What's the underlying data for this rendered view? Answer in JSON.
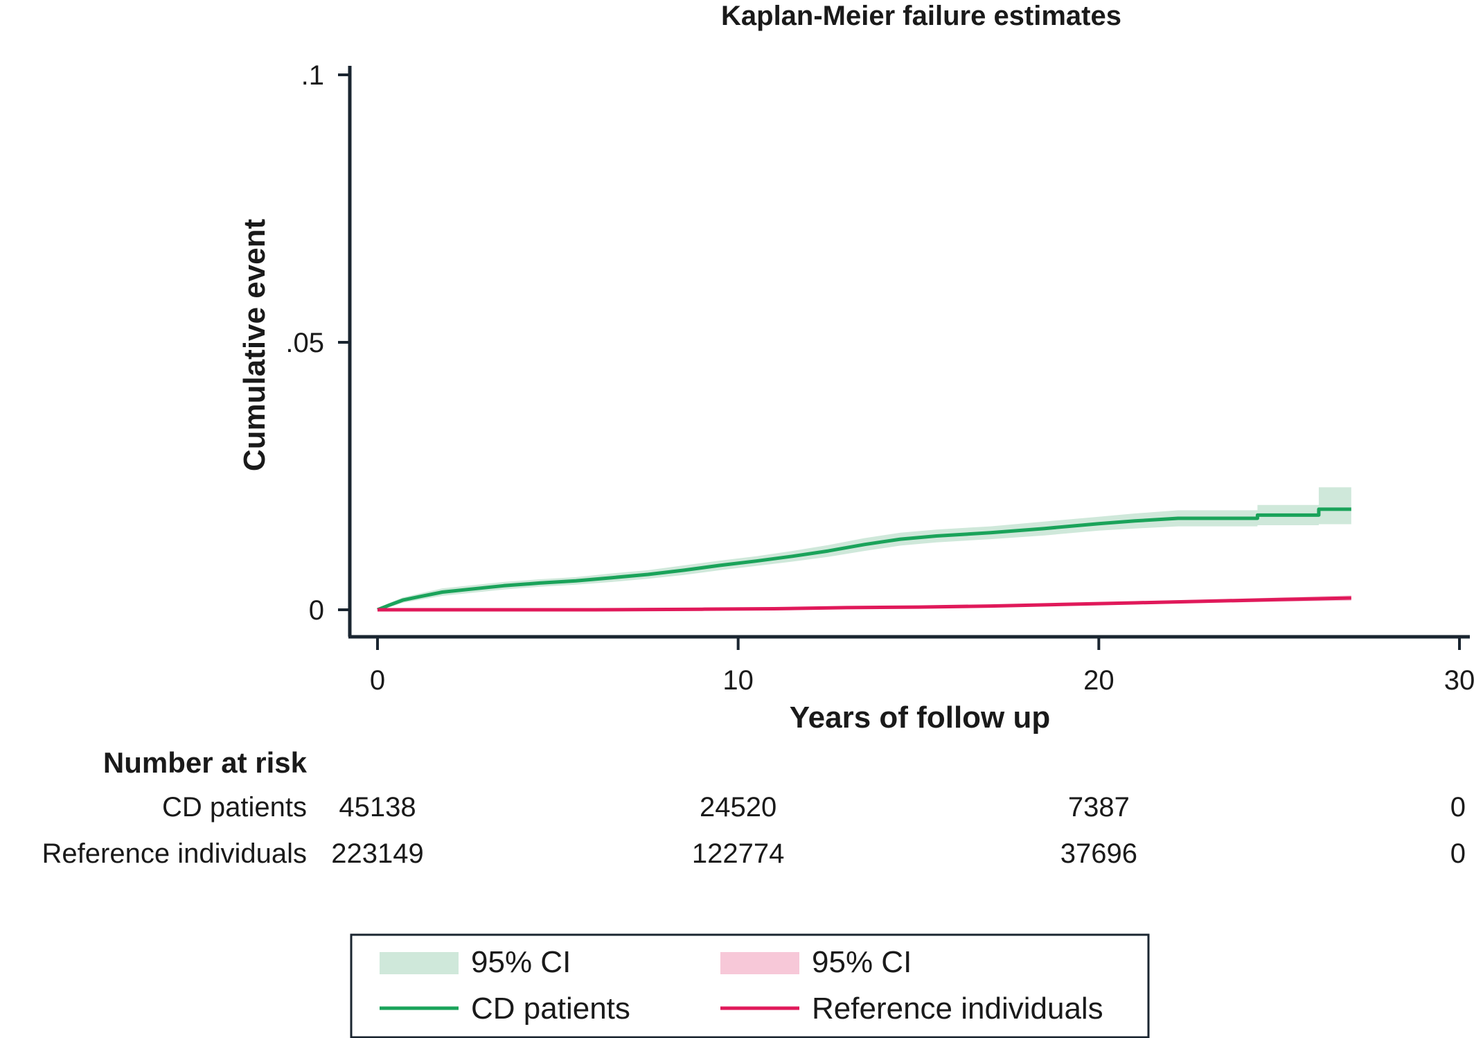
{
  "chart_data": {
    "type": "line",
    "title": "Kaplan-Meier failure estimates",
    "xlabel": "Years of follow up",
    "ylabel": "Cumulative event",
    "xlim": [
      0,
      30
    ],
    "ylim": [
      -0.005,
      0.1
    ],
    "x_ticks": [
      0,
      10,
      20,
      30
    ],
    "x_tick_labels": [
      "0",
      "10",
      "20",
      "30"
    ],
    "y_ticks": [
      0,
      0.05,
      0.1
    ],
    "y_tick_labels": [
      "0",
      ".05",
      ".1"
    ],
    "grid": false,
    "series": [
      {
        "name": "CD patients",
        "color": "#1aa35a",
        "ci_color": "#cfe8da",
        "x": [
          0,
          0.3,
          0.7,
          1.2,
          1.8,
          2.5,
          3.5,
          4.5,
          5.5,
          6.5,
          7.5,
          8.5,
          9.5,
          10.5,
          11.5,
          12.5,
          13.5,
          14.5,
          15.5,
          17,
          18.5,
          20,
          21,
          22.2,
          24.4,
          24.4,
          26.1,
          26.1,
          27
        ],
        "y": [
          0,
          0.0008,
          0.0018,
          0.0025,
          0.0033,
          0.0038,
          0.0045,
          0.005,
          0.0054,
          0.006,
          0.0066,
          0.0074,
          0.0083,
          0.0091,
          0.01,
          0.011,
          0.0122,
          0.0132,
          0.0138,
          0.0144,
          0.0152,
          0.0161,
          0.0166,
          0.0171,
          0.0171,
          0.0177,
          0.0177,
          0.0188,
          0.0188
        ],
        "ci_lower": [
          0,
          0.0004,
          0.0013,
          0.0019,
          0.0026,
          0.0031,
          0.0038,
          0.0043,
          0.0047,
          0.0052,
          0.0058,
          0.0065,
          0.0074,
          0.0082,
          0.009,
          0.0099,
          0.011,
          0.012,
          0.0126,
          0.0132,
          0.0139,
          0.0148,
          0.0152,
          0.0156,
          0.0156,
          0.0158,
          0.0158,
          0.016,
          0.016
        ],
        "ci_upper": [
          0,
          0.0012,
          0.0023,
          0.0031,
          0.004,
          0.0045,
          0.0052,
          0.0057,
          0.0061,
          0.0068,
          0.0074,
          0.0083,
          0.0092,
          0.01,
          0.011,
          0.0121,
          0.0134,
          0.0144,
          0.015,
          0.0156,
          0.0165,
          0.0174,
          0.018,
          0.0186,
          0.0186,
          0.0196,
          0.0196,
          0.0229,
          0.0229
        ]
      },
      {
        "name": "Reference individuals",
        "color": "#e0195a",
        "ci_color": "#f7c8d8",
        "x": [
          0,
          3,
          6,
          9,
          11,
          13,
          15,
          17,
          19,
          21,
          23,
          25,
          27
        ],
        "y": [
          0,
          0,
          0,
          0.0001,
          0.0002,
          0.0004,
          0.0005,
          0.0007,
          0.001,
          0.0013,
          0.0016,
          0.0019,
          0.0022
        ],
        "ci_lower": [
          0,
          0,
          0,
          0.0001,
          0.0001,
          0.0003,
          0.0004,
          0.0005,
          0.0008,
          0.001,
          0.0013,
          0.0015,
          0.0017
        ],
        "ci_upper": [
          0,
          0.0001,
          0.0001,
          0.0002,
          0.0003,
          0.0005,
          0.0007,
          0.0009,
          0.0012,
          0.0016,
          0.0019,
          0.0023,
          0.0027
        ]
      }
    ],
    "risk_table": {
      "title": "Number at risk",
      "times": [
        0,
        10,
        20,
        30
      ],
      "rows": [
        {
          "label": "CD patients",
          "values": [
            "45138",
            "24520",
            "7387",
            "0"
          ]
        },
        {
          "label": "Reference individuals",
          "values": [
            "223149",
            "122774",
            "37696",
            "0"
          ]
        }
      ]
    },
    "legend": {
      "placement": "bottom",
      "items": [
        {
          "label": "95% CI",
          "kind": "band",
          "color": "#cfe8da"
        },
        {
          "label": "95% CI",
          "kind": "band",
          "color": "#f7c8d8"
        },
        {
          "label": "CD patients",
          "kind": "line",
          "color": "#1aa35a"
        },
        {
          "label": "Reference individuals",
          "kind": "line",
          "color": "#e0195a"
        }
      ]
    }
  }
}
